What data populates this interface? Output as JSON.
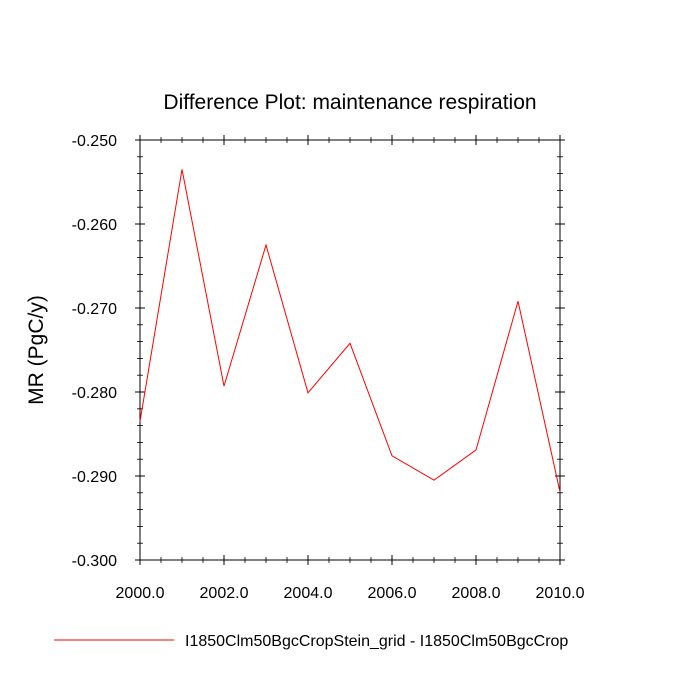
{
  "chart_data": {
    "type": "line",
    "title": "Difference Plot: maintenance respiration",
    "xlabel": "",
    "ylabel": "MR  (PgC/y)",
    "xlim": [
      2000.0,
      2010.0
    ],
    "ylim": [
      -0.3,
      -0.25
    ],
    "x_ticks": [
      2000.0,
      2002.0,
      2004.0,
      2006.0,
      2008.0,
      2010.0
    ],
    "x_tick_labels": [
      "2000.0",
      "2002.0",
      "2004.0",
      "2006.0",
      "2008.0",
      "2010.0"
    ],
    "y_ticks": [
      -0.25,
      -0.26,
      -0.27,
      -0.28,
      -0.29,
      -0.3
    ],
    "y_tick_labels": [
      "-0.250",
      "-0.260",
      "-0.270",
      "-0.280",
      "-0.290",
      "-0.300"
    ],
    "grid": false,
    "legend_position": "bottom",
    "series": [
      {
        "name": "I1850Clm50BgcCropStein_grid - I1850Clm50BgcCrop",
        "color": "#ff0000",
        "x": [
          2000,
          2001,
          2002,
          2003,
          2004,
          2005,
          2006,
          2007,
          2008,
          2009,
          2010
        ],
        "y": [
          -0.2835,
          -0.2535,
          -0.2793,
          -0.2625,
          -0.2801,
          -0.2742,
          -0.2876,
          -0.2905,
          -0.2869,
          -0.2692,
          -0.2919
        ]
      }
    ]
  }
}
